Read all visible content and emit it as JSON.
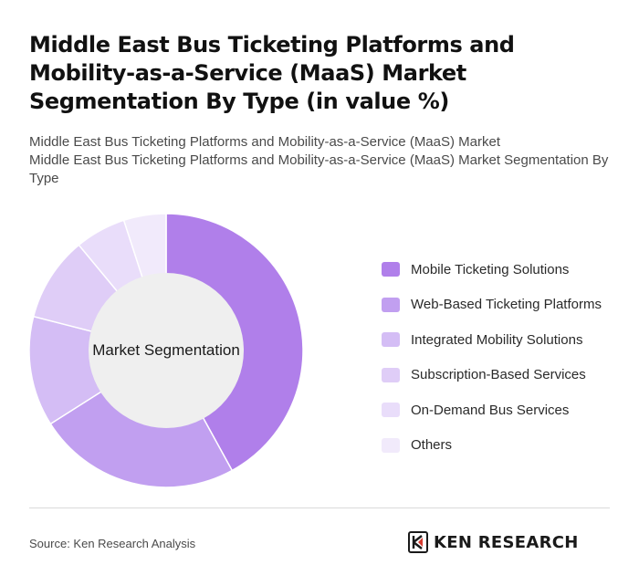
{
  "title": "Middle East Bus Ticketing Platforms and Mobility-as-a-Service (MaaS) Market Segmentation By Type (in value %)",
  "subtitle_line1": "Middle East Bus Ticketing Platforms and Mobility-as-a-Service (MaaS) Market",
  "subtitle_line2": "Middle East Bus Ticketing Platforms and Mobility-as-a-Service (MaaS) Market Segmentation By Type",
  "center_label": "Market Segmentation",
  "source": "Source: Ken Research Analysis",
  "brand": {
    "logo_icon": "ken-research-logo-icon",
    "name": "KEN RESEARCH"
  },
  "chart_data": {
    "type": "pie",
    "donut": true,
    "center_label": "Market Segmentation",
    "legend_position": "right",
    "categories": [
      "Mobile Ticketing Solutions",
      "Web-Based Ticketing Platforms",
      "Integrated Mobility Solutions",
      "Subscription-Based Services",
      "On-Demand Bus Services",
      "Others"
    ],
    "values": [
      42,
      24,
      13,
      10,
      6,
      5
    ],
    "colors": [
      "#b07fea",
      "#c19ff0",
      "#d4bdf5",
      "#dfcdf7",
      "#e9ddfa",
      "#f1eafb"
    ]
  }
}
